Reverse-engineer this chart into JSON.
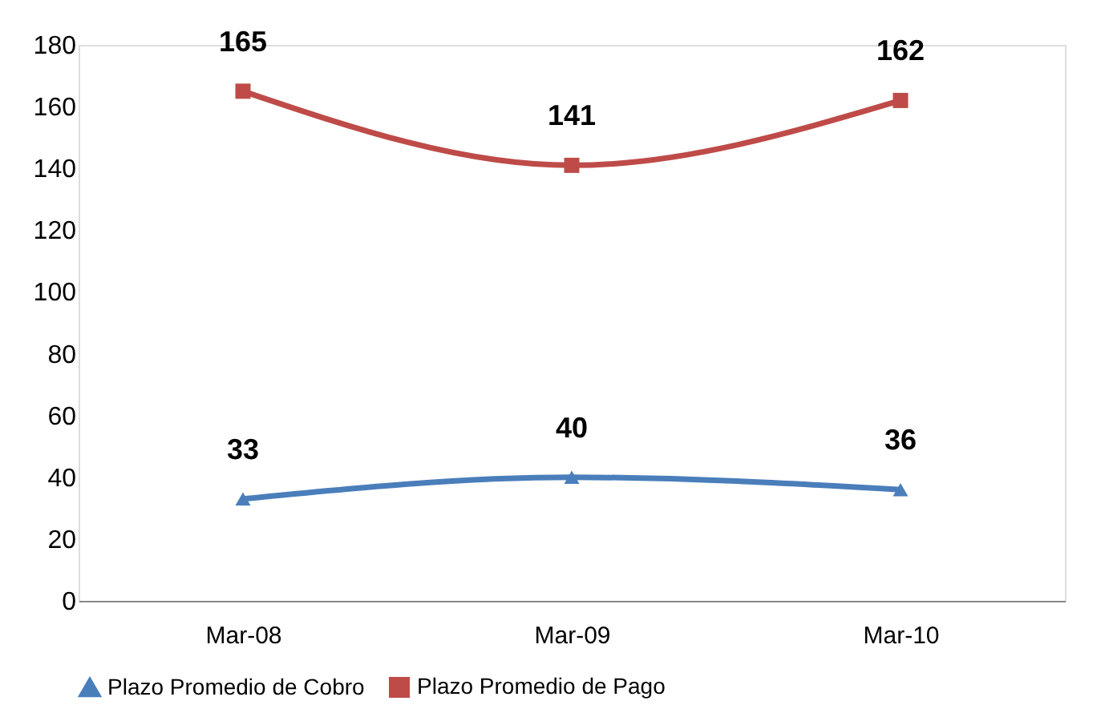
{
  "chart_data": {
    "type": "line",
    "categories": [
      "Mar-08",
      "Mar-09",
      "Mar-10"
    ],
    "series": [
      {
        "name": "Plazo Promedio de Cobro",
        "color": "#4a7ebb",
        "values": [
          33,
          40,
          36
        ],
        "marker": "triangle"
      },
      {
        "name": "Plazo Promedio de Pago",
        "color": "#be4b48",
        "values": [
          165,
          141,
          162
        ],
        "marker": "square"
      }
    ],
    "ylim": [
      0,
      180
    ],
    "yticks": [
      0,
      20,
      40,
      60,
      80,
      100,
      120,
      140,
      160,
      180
    ],
    "grid": false,
    "legend": "bottom",
    "data_labels": true,
    "line_style": "solid"
  }
}
